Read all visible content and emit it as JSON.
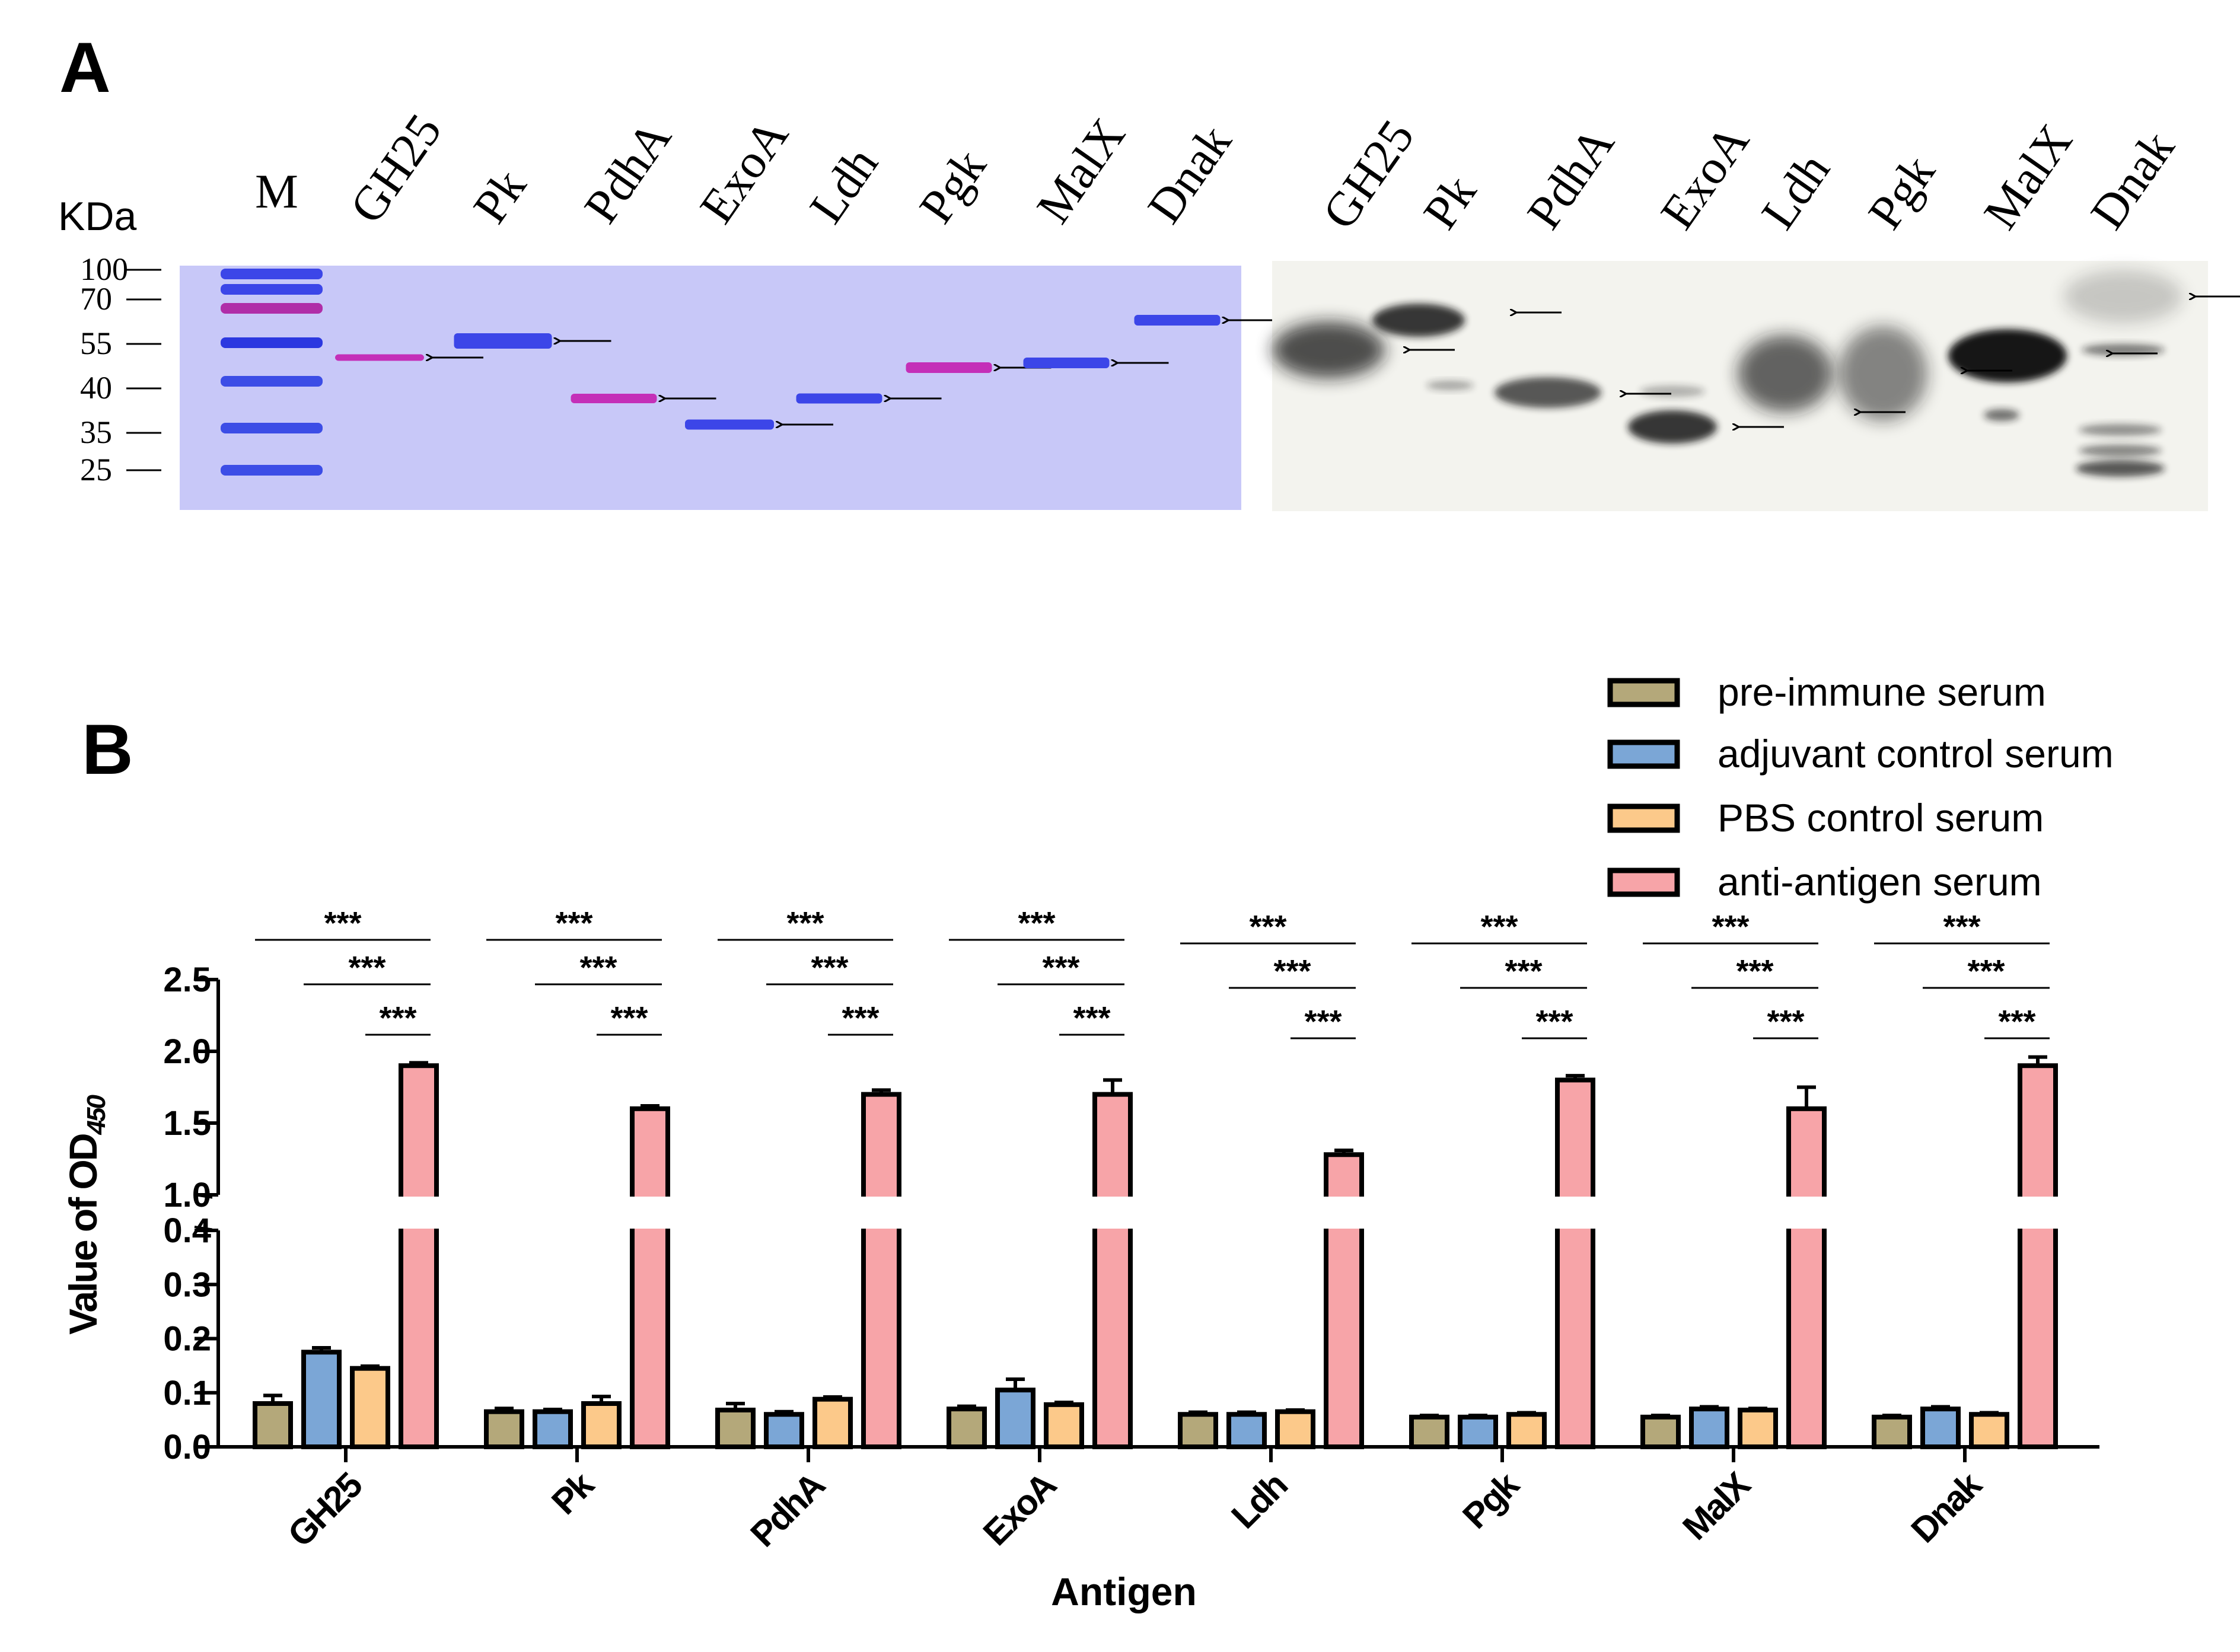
{
  "panel_a": {
    "label": "A",
    "kda_label": "KDa",
    "marker_label": "M",
    "ladder_sizes": [
      "100",
      "70",
      "55",
      "40",
      "35",
      "25"
    ],
    "gel_lanes": [
      "GH25",
      "Pk",
      "PdhA",
      "ExoA",
      "Ldh",
      "Pgk",
      "MalX",
      "Dnak"
    ],
    "blot_lanes": [
      "GH25",
      "Pk",
      "PdhA",
      "ExoA",
      "Ldh",
      "Pgk",
      "MalX",
      "Dnak"
    ],
    "colors": {
      "gel_bg": "#cfd0fb",
      "gel_band": "#3c46e8",
      "gel_band_pink": "#c42fb8",
      "blot_bg": "#f3f3ee"
    }
  },
  "panel_b": {
    "label": "B",
    "significance": "***"
  },
  "chart_data": {
    "type": "bar",
    "title": "",
    "xlabel": "Antigen",
    "ylabel": "Value of OD",
    "ylabel_subscript": "450",
    "categories": [
      "GH25",
      "Pk",
      "PdhA",
      "ExoA",
      "Ldh",
      "Pgk",
      "MalX",
      "Dnak"
    ],
    "series": [
      {
        "name": "pre-immune serum",
        "color": "#b4a87a",
        "values": [
          0.08,
          0.065,
          0.068,
          0.07,
          0.06,
          0.055,
          0.055,
          0.055
        ],
        "errors": [
          0.015,
          0.006,
          0.012,
          0.005,
          0.004,
          0.003,
          0.003,
          0.003
        ]
      },
      {
        "name": "adjuvant control serum",
        "color": "#7ba6d6",
        "values": [
          0.175,
          0.065,
          0.06,
          0.105,
          0.06,
          0.055,
          0.07,
          0.07
        ],
        "errors": [
          0.008,
          0.004,
          0.005,
          0.02,
          0.004,
          0.003,
          0.004,
          0.004
        ]
      },
      {
        "name": "PBS control serum",
        "color": "#fcc98a",
        "values": [
          0.145,
          0.08,
          0.088,
          0.078,
          0.065,
          0.06,
          0.068,
          0.06
        ],
        "errors": [
          0.004,
          0.013,
          0.004,
          0.004,
          0.003,
          0.003,
          0.003,
          0.003
        ]
      },
      {
        "name": "anti-antigen serum",
        "color": "#f7a4a8",
        "values": [
          1.9,
          1.6,
          1.7,
          1.7,
          1.28,
          1.8,
          1.6,
          1.9
        ],
        "errors": [
          0.02,
          0.02,
          0.03,
          0.1,
          0.03,
          0.03,
          0.15,
          0.06
        ]
      }
    ],
    "y_axis_lower": {
      "range": [
        0,
        0.4
      ],
      "ticks": [
        "0.0",
        "0.1",
        "0.2",
        "0.3",
        "0.4"
      ]
    },
    "y_axis_upper": {
      "range": [
        1.0,
        2.5
      ],
      "ticks": [
        "1.0",
        "1.5",
        "2.0",
        "2.5"
      ]
    },
    "axis_break": [
      0.4,
      1.0
    ],
    "legend_position": "top-right",
    "grid": false
  }
}
